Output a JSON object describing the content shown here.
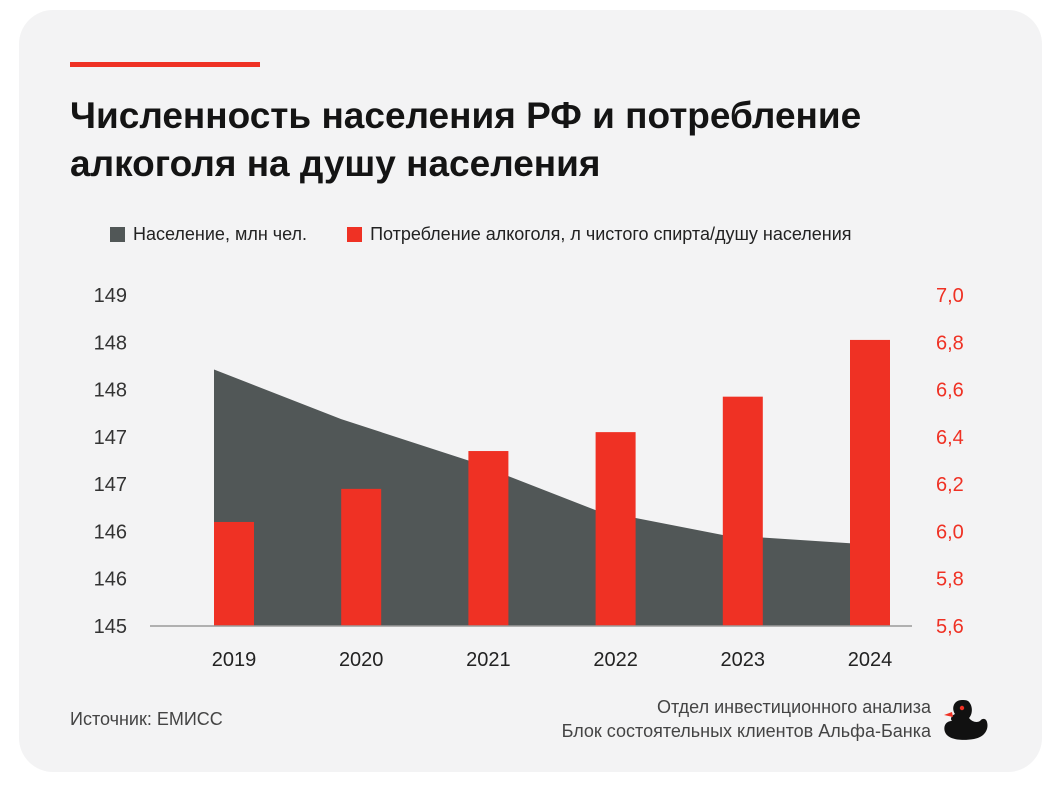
{
  "title": "Численность населения РФ и потребление алкоголя на душу населения",
  "legend": {
    "population_label": "Население, млн чел.",
    "alcohol_label": "Потребление алкоголя, л чистого спирта/душу населения"
  },
  "colors": {
    "population": "#515757",
    "alcohol": "#ef3124",
    "accent": "#ef3124"
  },
  "chart_data": {
    "type": "bar",
    "categories": [
      "2019",
      "2020",
      "2021",
      "2022",
      "2023",
      "2024"
    ],
    "series": [
      {
        "name": "Население, млн чел.",
        "type": "area",
        "axis": "left",
        "values": [
          148.1,
          147.5,
          147.0,
          146.4,
          146.1,
          146.0
        ]
      },
      {
        "name": "Потребление алкоголя, л чистого спирта/душу населения",
        "type": "bar",
        "axis": "right",
        "values": [
          6.04,
          6.18,
          6.34,
          6.42,
          6.57,
          6.81
        ]
      }
    ],
    "left_axis": {
      "range": [
        145,
        149
      ],
      "tick_labels": [
        "145",
        "146",
        "146",
        "147",
        "147",
        "148",
        "148",
        "149"
      ]
    },
    "right_axis": {
      "range": [
        5.6,
        7.0
      ],
      "tick_labels": [
        "5,6",
        "5,8",
        "6,0",
        "6,2",
        "6,4",
        "6,6",
        "6,8",
        "7,0"
      ]
    },
    "grid": false,
    "legend_position": "top"
  },
  "footer": {
    "source": "Источник: ЕМИСС",
    "credits_line1": "Отдел инвестиционного анализа",
    "credits_line2": "Блок состоятельных клиентов Альфа-Банка"
  },
  "logo_icon": "duck-logo-icon"
}
